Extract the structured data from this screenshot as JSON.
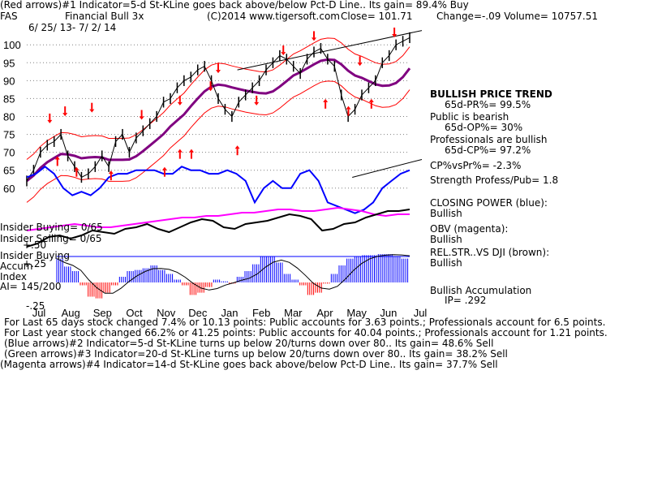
{
  "header": {
    "line1": "(Red arrows)#1 Indicator=5-d St-KLine goes back above/below Pct-D Line.. Its gain= 89.4% Buy",
    "ticker": "FAS",
    "name": "Financial Bull 3x",
    "copyright": "(C)2014 www.tigersoft.com",
    "close": "Close=  101.71",
    "change": "Change=-.09 Volume=  10757.51",
    "date_range": "6/ 25/ 13-  7/ 2/ 14"
  },
  "right_panel": {
    "trend_title": "BULLISH PRICE TREND",
    "pr_pct": "65d-PR%= 99.5%",
    "public": "Public is bearish",
    "op_pct": "65d-OP%= 30%",
    "professionals": "Professionals are bullish",
    "cp_pct": "65d-CP%= 97.2%",
    "cp_vs_pr": "CP%vsPr%= -2.3%",
    "strength": "Strength Profess/Pub= 1.8",
    "closing_power": "CLOSING POWER (blue):",
    "closing_power_val": "Bullish",
    "obv": "OBV (magenta):",
    "obv_val": "Bullish",
    "relstr": "REL.STR..VS DJI (brown):",
    "relstr_val": "Bullish",
    "accum": "Bullish Accumulation",
    "ip": "IP=  .292"
  },
  "left_panel": {
    "insider_buying": "Insider Buying= 0/65",
    "insider_selling": "Insider Selling= 0/65",
    "insider_buying2": "Insider Buying",
    "accum": "Accum",
    "index": "Index",
    "ai": "AI= 145/200",
    "plus50": "+.50",
    "plus25": "+.25",
    "minus25": "-.25"
  },
  "footer": {
    "line1": "For Last 65 days stock changed  7.4% or  10.13 points:  Public accounts for  3.63 points.;  Professionals account for  6.5 points.",
    "line2": "For Last year stock changed  66.2% or  41.25 points:  Public accounts for  40.04 points.;  Professionals account for  1.21 points.",
    "line3": "(Blue arrows)#2 Indicator=5-d St-KLine turns up below 20/turns down over 80.. Its gain= 48.6% Sell",
    "line4": "(Green arrows)#3 Indicator=20-d St-KLine turns up below 20/turns down over 80.. Its gain= 38.2% Sell",
    "line5": "(Magenta arrows)#4 Indicator=14-d St-KLine goes back above/below Pct-D Line.. Its gain= 37.7% Sell"
  },
  "chart_data": {
    "type": "line",
    "title": "FAS Financial Bull 3x",
    "x_ticks": [
      "Jul",
      "Aug",
      "Sep",
      "Oct",
      "Nov",
      "Dec",
      "Jan",
      "Feb",
      "Mar",
      "Apr",
      "May",
      "Jun",
      "Jul"
    ],
    "y_ticks": [
      100,
      95,
      90,
      85,
      80,
      75,
      70,
      65,
      60
    ],
    "ylim": [
      57,
      103
    ],
    "grid": true,
    "colors": {
      "price": "#000000",
      "ma": "#800080",
      "bands": "#ff0000",
      "closing_power": "#0000ff",
      "obv": "#ff00ff",
      "relstr": "#000000",
      "accum_up": "#0000ff",
      "accum_down": "#ff0000",
      "arrow_buy": "#ff0000",
      "arrow_sell": "#0000ff"
    },
    "series": [
      {
        "name": "Price",
        "values": [
          62,
          65,
          70,
          72,
          73,
          75,
          69,
          66,
          63,
          64,
          66,
          69,
          66,
          73,
          75,
          70,
          74,
          76,
          78,
          80,
          84,
          85,
          88,
          90,
          91,
          93,
          94,
          90,
          85,
          82,
          80,
          84,
          86,
          88,
          90,
          93,
          95,
          97,
          96,
          94,
          92,
          96,
          98,
          99,
          96,
          94,
          86,
          80,
          82,
          86,
          88,
          90,
          95,
          97,
          100,
          101,
          102
        ]
      }
    ],
    "closing_power": [
      63,
      64,
      66,
      64,
      60,
      58,
      59,
      58,
      60,
      63,
      64,
      64,
      65,
      65,
      65,
      64,
      64,
      66,
      65,
      65,
      64,
      64,
      65,
      64,
      62,
      56,
      60,
      62,
      60,
      60,
      64,
      65,
      62,
      56,
      55,
      54,
      53,
      54,
      56,
      60,
      62,
      64,
      65
    ],
    "obv": [
      48,
      49,
      50,
      51,
      52,
      51,
      50,
      50,
      51,
      52,
      53,
      54,
      55,
      56,
      56,
      57,
      57,
      58,
      59,
      59,
      60,
      61,
      61,
      60,
      60,
      61,
      62,
      61,
      60,
      58,
      57,
      58,
      58
    ],
    "relstr": [
      38,
      40,
      44,
      45,
      43,
      45,
      48,
      47,
      46,
      49,
      50,
      52,
      49,
      47,
      50,
      53,
      55,
      54,
      50,
      49,
      52,
      53,
      54,
      56,
      58,
      57,
      55,
      48,
      49,
      52,
      53,
      56,
      58,
      60,
      60,
      61
    ],
    "accum": [
      0.42,
      0.28,
      0.2,
      -0.05,
      -0.25,
      -0.28,
      -0.18,
      -0.05,
      0.1,
      0.2,
      0.22,
      0.25,
      0.3,
      0.22,
      0.15,
      0.05,
      -0.05,
      -0.22,
      -0.18,
      -0.08,
      0.05,
      0.02,
      -0.02,
      0.1,
      0.2,
      0.32,
      0.45,
      0.46,
      0.35,
      0.15,
      0.05,
      -0.05,
      -0.22,
      -0.18,
      -0.02,
      0.15,
      0.3,
      0.42,
      0.46,
      0.48,
      0.48,
      0.5,
      0.5,
      0.46,
      0.42
    ],
    "arrows": [
      {
        "dir": "down",
        "x": 0.06,
        "y": 79
      },
      {
        "dir": "down",
        "x": 0.1,
        "y": 81
      },
      {
        "dir": "down",
        "x": 0.17,
        "y": 82
      },
      {
        "dir": "up",
        "x": 0.08,
        "y": 68
      },
      {
        "dir": "up",
        "x": 0.13,
        "y": 65
      },
      {
        "dir": "up",
        "x": 0.22,
        "y": 64
      },
      {
        "dir": "down",
        "x": 0.3,
        "y": 80
      },
      {
        "dir": "up",
        "x": 0.36,
        "y": 65
      },
      {
        "dir": "up",
        "x": 0.4,
        "y": 70
      },
      {
        "dir": "up",
        "x": 0.43,
        "y": 70
      },
      {
        "dir": "down",
        "x": 0.4,
        "y": 84
      },
      {
        "dir": "down",
        "x": 0.48,
        "y": 88
      },
      {
        "dir": "down",
        "x": 0.5,
        "y": 93
      },
      {
        "dir": "up",
        "x": 0.55,
        "y": 71
      },
      {
        "dir": "down",
        "x": 0.6,
        "y": 84
      },
      {
        "dir": "down",
        "x": 0.67,
        "y": 98
      },
      {
        "dir": "down",
        "x": 0.75,
        "y": 102
      },
      {
        "dir": "up",
        "x": 0.78,
        "y": 84
      },
      {
        "dir": "up",
        "x": 0.84,
        "y": 82
      },
      {
        "dir": "down",
        "x": 0.87,
        "y": 95
      },
      {
        "dir": "up",
        "x": 0.9,
        "y": 84
      },
      {
        "dir": "down",
        "x": 0.96,
        "y": 103
      }
    ]
  }
}
